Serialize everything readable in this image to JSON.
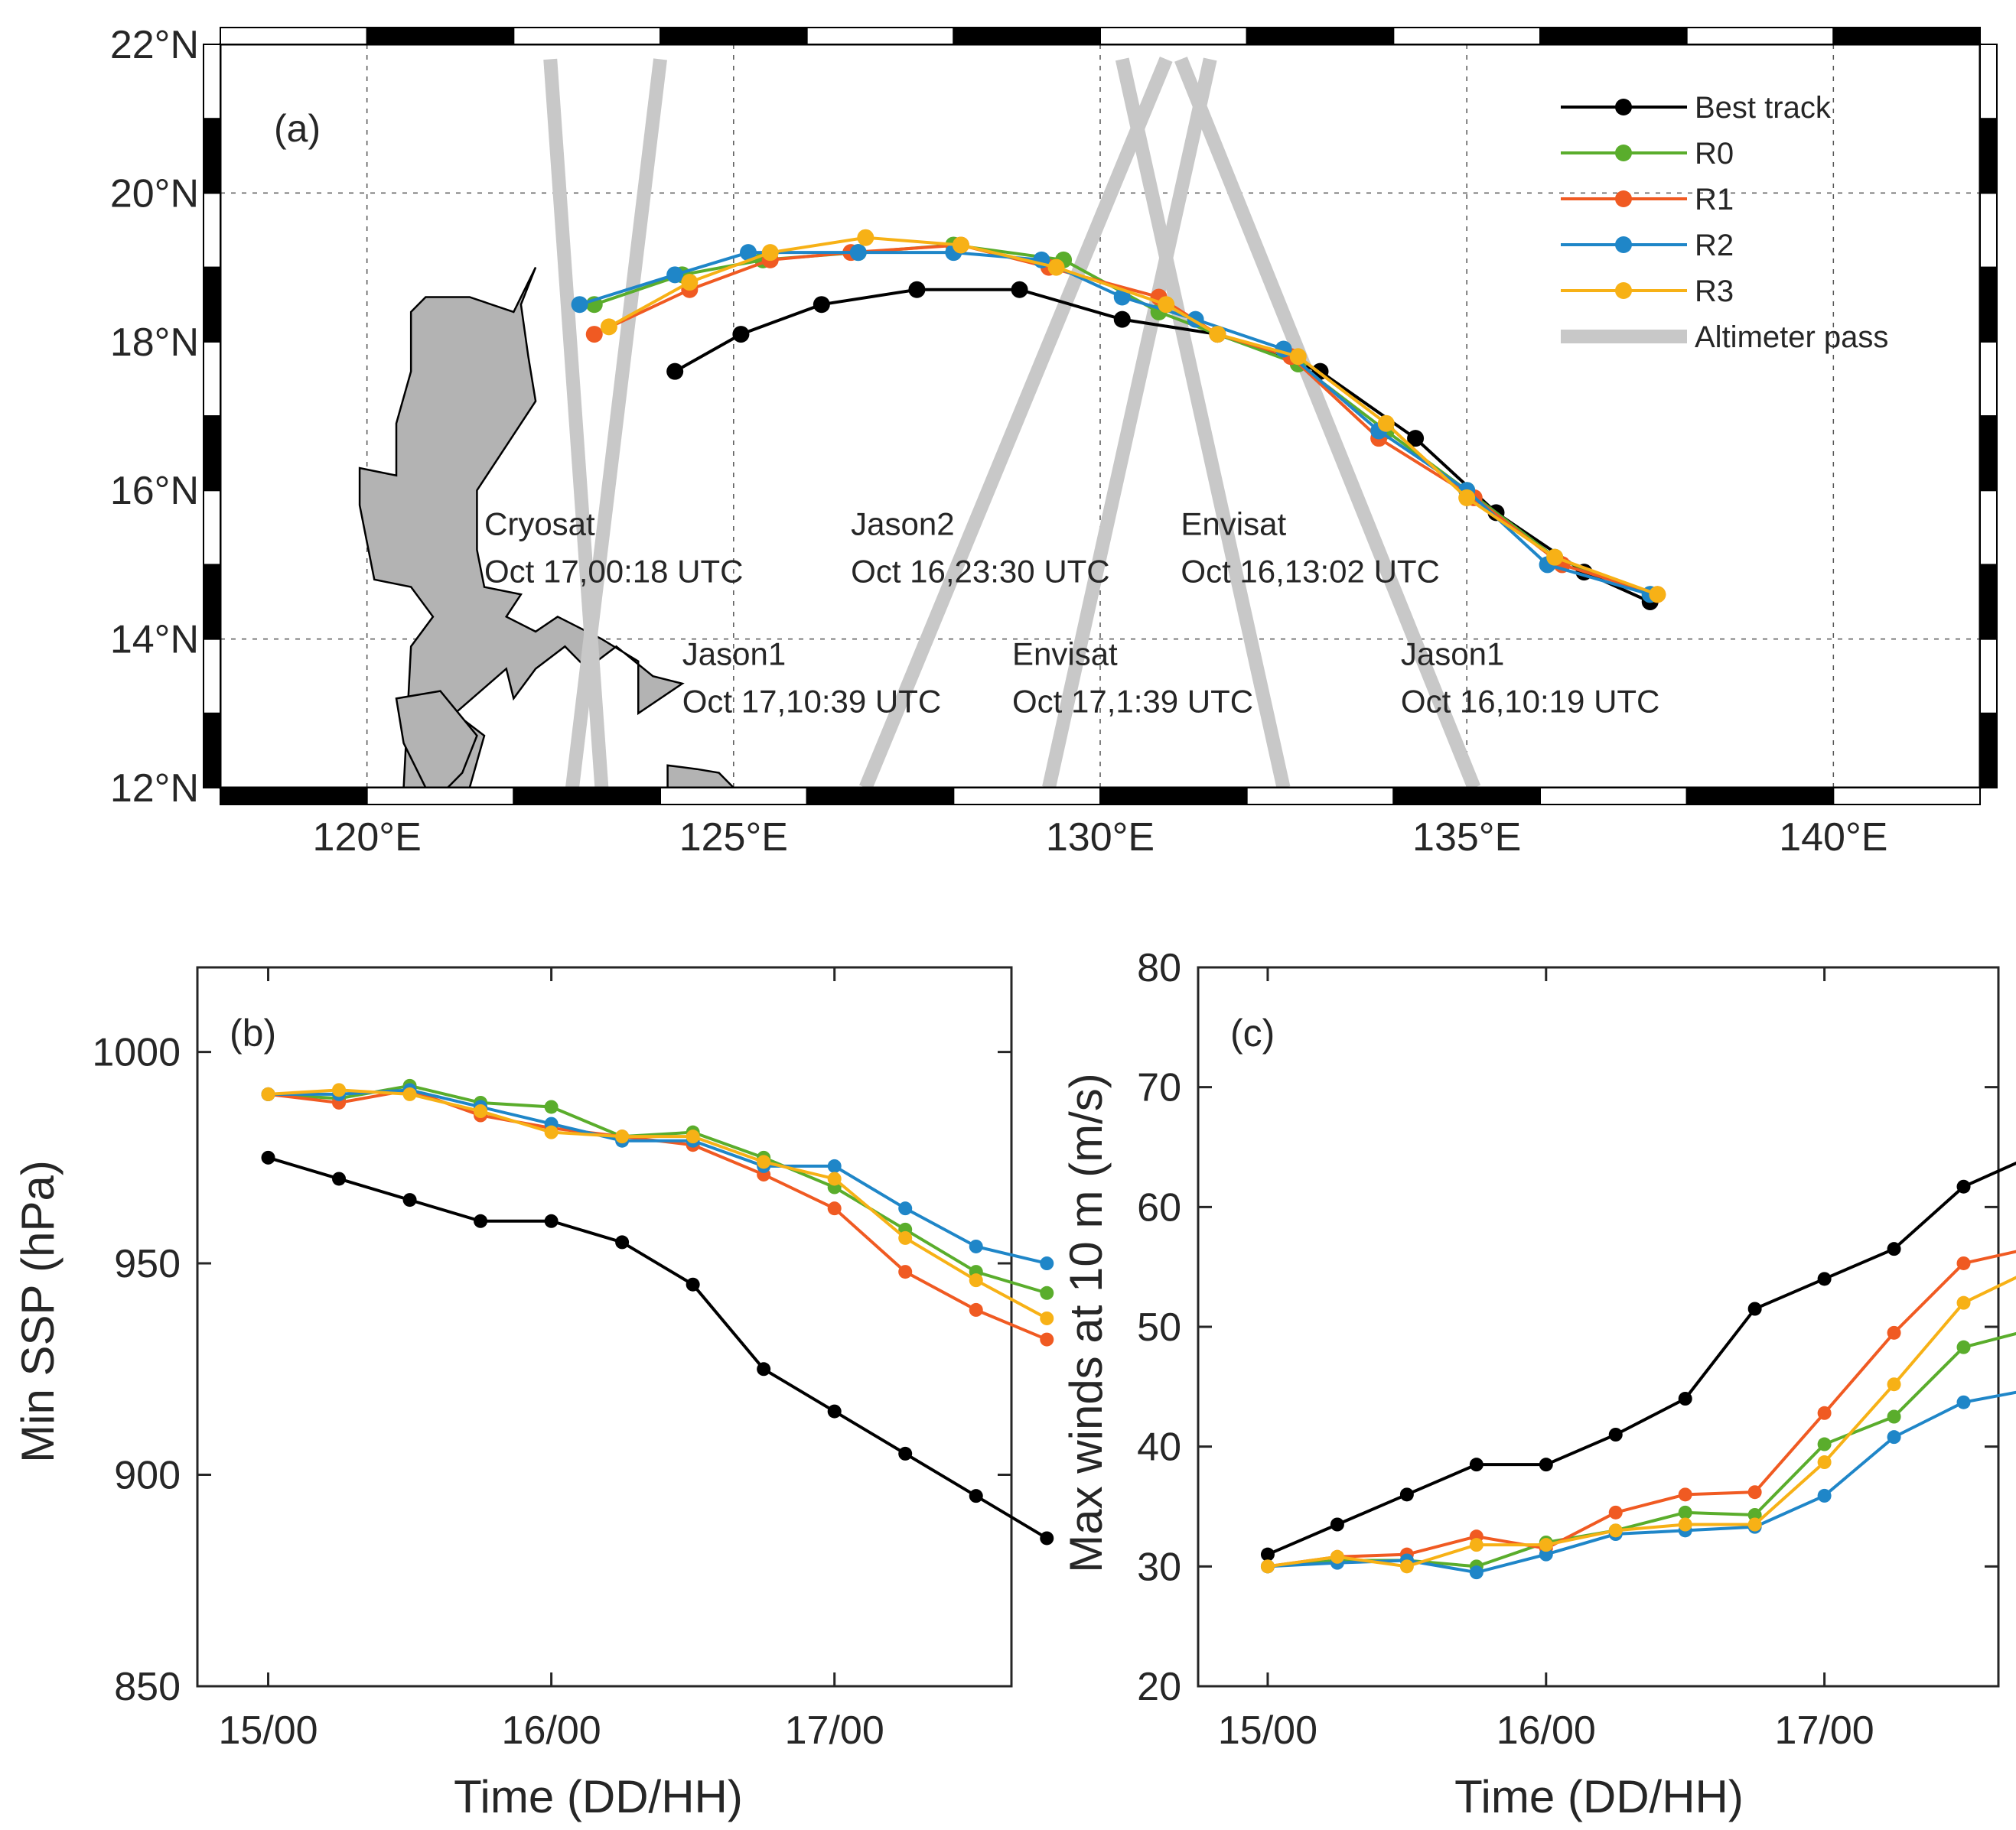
{
  "colors": {
    "best_track": "#000000",
    "R0": "#5aad2c",
    "R1": "#f05a22",
    "R2": "#1f86c8",
    "R3": "#f7b116",
    "altimeter": "#c8c8c8",
    "land": "#b3b3b3"
  },
  "chart_data": [
    {
      "panel": "(a)",
      "type": "line",
      "xlim": [
        118,
        142
      ],
      "ylim": [
        12,
        22
      ],
      "x_ticks": [
        120,
        125,
        130,
        135,
        140
      ],
      "x_tick_labels": [
        "120°E",
        "125°E",
        "130°E",
        "135°E",
        "140°E"
      ],
      "y_ticks": [
        12,
        14,
        16,
        18,
        20,
        22
      ],
      "y_tick_labels": [
        "12°N",
        "14°N",
        "16°N",
        "18°N",
        "20°N",
        "22°N"
      ],
      "grid": "dashed",
      "legend_position": "top-right",
      "legend": [
        "Best track",
        "R0",
        "R1",
        "R2",
        "R3",
        "Altimeter pass"
      ],
      "series": [
        {
          "name": "Best track",
          "color_key": "best_track",
          "points": [
            [
              137.5,
              14.5
            ],
            [
              136.6,
              14.9
            ],
            [
              135.4,
              15.7
            ],
            [
              134.3,
              16.7
            ],
            [
              133.0,
              17.6
            ],
            [
              131.6,
              18.1
            ],
            [
              130.3,
              18.3
            ],
            [
              128.9,
              18.7
            ],
            [
              127.5,
              18.7
            ],
            [
              126.2,
              18.5
            ],
            [
              125.1,
              18.1
            ],
            [
              124.2,
              17.6
            ]
          ]
        },
        {
          "name": "R0",
          "color_key": "R0",
          "points": [
            [
              137.5,
              14.6
            ],
            [
              136.2,
              15.1
            ],
            [
              135.0,
              16.0
            ],
            [
              133.9,
              16.8
            ],
            [
              132.7,
              17.7
            ],
            [
              131.6,
              18.1
            ],
            [
              130.8,
              18.4
            ],
            [
              129.5,
              19.1
            ],
            [
              128.0,
              19.3
            ],
            [
              126.7,
              19.2
            ],
            [
              125.4,
              19.1
            ],
            [
              124.3,
              18.9
            ],
            [
              123.1,
              18.5
            ]
          ]
        },
        {
          "name": "R1",
          "color_key": "R1",
          "points": [
            [
              137.6,
              14.6
            ],
            [
              136.3,
              15.0
            ],
            [
              135.1,
              15.9
            ],
            [
              133.8,
              16.7
            ],
            [
              132.6,
              17.8
            ],
            [
              131.6,
              18.1
            ],
            [
              130.8,
              18.6
            ],
            [
              129.3,
              19.0
            ],
            [
              128.1,
              19.3
            ],
            [
              126.6,
              19.2
            ],
            [
              125.5,
              19.1
            ],
            [
              124.4,
              18.7
            ],
            [
              123.1,
              18.1
            ]
          ]
        },
        {
          "name": "R2",
          "color_key": "R2",
          "points": [
            [
              137.5,
              14.6
            ],
            [
              136.1,
              15.0
            ],
            [
              135.0,
              16.0
            ],
            [
              133.8,
              16.8
            ],
            [
              132.5,
              17.9
            ],
            [
              131.3,
              18.3
            ],
            [
              130.3,
              18.6
            ],
            [
              129.2,
              19.1
            ],
            [
              128.0,
              19.2
            ],
            [
              126.7,
              19.2
            ],
            [
              125.2,
              19.2
            ],
            [
              124.2,
              18.9
            ],
            [
              122.9,
              18.5
            ]
          ]
        },
        {
          "name": "R3",
          "color_key": "R3",
          "points": [
            [
              137.6,
              14.6
            ],
            [
              136.2,
              15.1
            ],
            [
              135.0,
              15.9
            ],
            [
              133.9,
              16.9
            ],
            [
              132.7,
              17.8
            ],
            [
              131.6,
              18.1
            ],
            [
              130.9,
              18.5
            ],
            [
              129.4,
              19.0
            ],
            [
              128.1,
              19.3
            ],
            [
              126.8,
              19.4
            ],
            [
              125.5,
              19.2
            ],
            [
              124.4,
              18.8
            ],
            [
              123.3,
              18.2
            ]
          ]
        }
      ],
      "altimeter_passes": [
        {
          "from": [
            122.5,
            21.8
          ],
          "to": [
            123.2,
            12.0
          ]
        },
        {
          "from": [
            124.0,
            21.8
          ],
          "to": [
            122.8,
            12.0
          ]
        },
        {
          "from": [
            126.8,
            12.0
          ],
          "to": [
            130.9,
            21.8
          ]
        },
        {
          "from": [
            129.3,
            12.0
          ],
          "to": [
            131.5,
            21.8
          ]
        },
        {
          "from": [
            130.3,
            21.8
          ],
          "to": [
            132.5,
            12.0
          ]
        },
        {
          "from": [
            131.1,
            21.8
          ],
          "to": [
            135.1,
            12.0
          ]
        }
      ],
      "annotations": [
        {
          "id": "cryosat",
          "lines": [
            "Cryosat",
            "Oct 17,00:18 UTC"
          ],
          "anchor": [
            121.6,
            15.4
          ]
        },
        {
          "id": "jason2",
          "lines": [
            "Jason2",
            "Oct 16,23:30 UTC"
          ],
          "anchor": [
            126.6,
            15.4
          ]
        },
        {
          "id": "envisat_a",
          "lines": [
            "Envisat",
            "Oct 16,13:02 UTC"
          ],
          "anchor": [
            131.1,
            15.4
          ]
        },
        {
          "id": "jason1_a",
          "lines": [
            "Jason1",
            "Oct 17,10:39 UTC"
          ],
          "anchor": [
            124.3,
            13.65
          ]
        },
        {
          "id": "envisat_b",
          "lines": [
            "Envisat",
            "Oct 17,1:39 UTC"
          ],
          "anchor": [
            128.8,
            13.65
          ]
        },
        {
          "id": "jason1_b",
          "lines": [
            "Jason1",
            "Oct 16,10:19 UTC"
          ],
          "anchor": [
            134.1,
            13.65
          ]
        }
      ]
    },
    {
      "panel": "(b)",
      "type": "line",
      "ylabel": "Min SSP (hPa)",
      "xlabel": "Time (DD/HH)",
      "x_ticks": [
        0,
        24,
        48
      ],
      "x_tick_labels": [
        "15/00",
        "16/00",
        "17/00"
      ],
      "xlim": [
        -6,
        63
      ],
      "ylim": [
        850,
        1020
      ],
      "y_ticks": [
        850,
        900,
        950,
        1000
      ],
      "x_hours": [
        0,
        6,
        12,
        18,
        24,
        30,
        36,
        42,
        48,
        54,
        60,
        66
      ],
      "series": [
        {
          "name": "Best track",
          "color_key": "best_track",
          "values": [
            975,
            970,
            965,
            960,
            960,
            955,
            945,
            925,
            915,
            905,
            895,
            885
          ]
        },
        {
          "name": "R0",
          "color_key": "R0",
          "values": [
            990,
            989,
            992,
            988,
            987,
            980,
            981,
            975,
            968,
            958,
            948,
            943
          ]
        },
        {
          "name": "R1",
          "color_key": "R1",
          "values": [
            990,
            988,
            991,
            985,
            982,
            980,
            978,
            971,
            963,
            948,
            939,
            932
          ]
        },
        {
          "name": "R2",
          "color_key": "R2",
          "values": [
            990,
            990,
            991,
            987,
            983,
            979,
            979,
            973,
            973,
            963,
            954,
            950
          ]
        },
        {
          "name": "R3",
          "color_key": "R3",
          "values": [
            990,
            991,
            990,
            986,
            981,
            980,
            980,
            974,
            970,
            956,
            946,
            937
          ]
        }
      ]
    },
    {
      "panel": "(c)",
      "type": "line",
      "ylabel": "Max winds at 10 m (m/s)",
      "xlabel": "Time (DD/HH)",
      "x_ticks": [
        0,
        24,
        48
      ],
      "x_tick_labels": [
        "15/00",
        "16/00",
        "17/00"
      ],
      "xlim": [
        -6,
        63
      ],
      "ylim": [
        20,
        80
      ],
      "y_ticks": [
        20,
        30,
        40,
        50,
        60,
        70,
        80
      ],
      "x_hours": [
        0,
        6,
        12,
        18,
        24,
        30,
        36,
        42,
        48,
        54,
        60,
        66
      ],
      "series": [
        {
          "name": "Best track",
          "color_key": "best_track",
          "values": [
            31,
            33.5,
            36,
            38.5,
            38.5,
            41,
            44,
            51.5,
            54,
            56.5,
            61.7,
            64.3
          ]
        },
        {
          "name": "R0",
          "color_key": "R0",
          "values": [
            30,
            30.5,
            30.5,
            30,
            32,
            33,
            34.5,
            34.3,
            40.2,
            42.5,
            48.3,
            49.8
          ]
        },
        {
          "name": "R1",
          "color_key": "R1",
          "values": [
            30,
            30.8,
            31,
            32.5,
            31.5,
            34.5,
            36,
            36.2,
            42.8,
            49.5,
            55.3,
            56.6
          ]
        },
        {
          "name": "R2",
          "color_key": "R2",
          "values": [
            30,
            30.3,
            30.5,
            29.5,
            31,
            32.7,
            33,
            33.3,
            35.9,
            40.8,
            43.7,
            44.8
          ]
        },
        {
          "name": "R3",
          "color_key": "R3",
          "values": [
            30,
            30.8,
            30,
            31.8,
            31.8,
            33,
            33.5,
            33.5,
            38.7,
            45.2,
            52,
            54.8
          ]
        }
      ]
    }
  ]
}
